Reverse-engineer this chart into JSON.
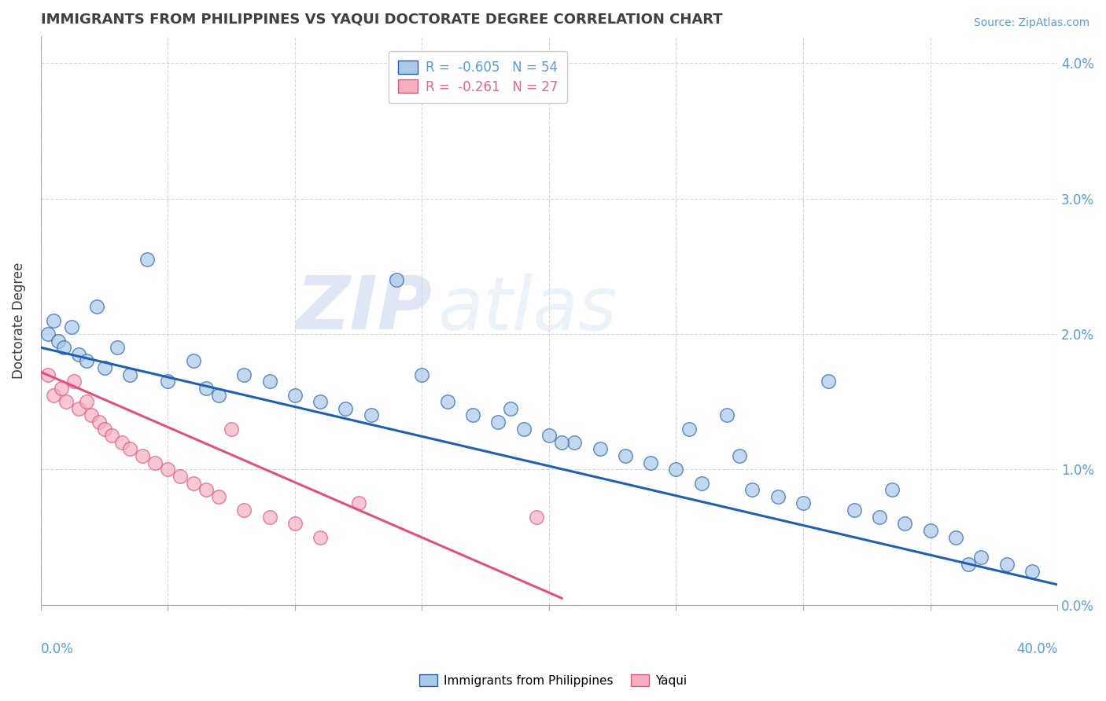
{
  "title": "IMMIGRANTS FROM PHILIPPINES VS YAQUI DOCTORATE DEGREE CORRELATION CHART",
  "source": "Source: ZipAtlas.com",
  "ylabel": "Doctorate Degree",
  "legend_entries": [
    {
      "label": "Immigrants from Philippines",
      "R": "-0.605",
      "N": "54",
      "color": "#5b9bd5",
      "fill": "#aec6e8"
    },
    {
      "label": "Yaqui",
      "R": "-0.261",
      "N": "27",
      "color": "#f06090",
      "fill": "#f4b8c8"
    }
  ],
  "watermark_zip": "ZIP",
  "watermark_atlas": "atlas",
  "blue_scatter_x": [
    0.3,
    0.5,
    0.7,
    0.9,
    1.2,
    1.5,
    1.8,
    2.2,
    2.5,
    3.0,
    3.5,
    4.2,
    5.0,
    6.0,
    6.5,
    7.0,
    8.0,
    9.0,
    10.0,
    11.0,
    12.0,
    13.0,
    14.0,
    15.0,
    16.0,
    17.0,
    18.0,
    19.0,
    20.0,
    21.0,
    22.0,
    23.0,
    24.0,
    25.0,
    26.0,
    27.0,
    28.0,
    29.0,
    30.0,
    31.0,
    32.0,
    33.0,
    34.0,
    35.0,
    36.0,
    37.0,
    38.0,
    39.0,
    18.5,
    20.5,
    25.5,
    27.5,
    33.5,
    36.5
  ],
  "blue_scatter_y": [
    2.0,
    2.1,
    1.95,
    1.9,
    2.05,
    1.85,
    1.8,
    2.2,
    1.75,
    1.9,
    1.7,
    2.55,
    1.65,
    1.8,
    1.6,
    1.55,
    1.7,
    1.65,
    1.55,
    1.5,
    1.45,
    1.4,
    2.4,
    1.7,
    1.5,
    1.4,
    1.35,
    1.3,
    1.25,
    1.2,
    1.15,
    1.1,
    1.05,
    1.0,
    0.9,
    1.4,
    0.85,
    0.8,
    0.75,
    1.65,
    0.7,
    0.65,
    0.6,
    0.55,
    0.5,
    0.35,
    0.3,
    0.25,
    1.45,
    1.2,
    1.3,
    1.1,
    0.85,
    0.3
  ],
  "pink_scatter_x": [
    0.3,
    0.5,
    0.8,
    1.0,
    1.3,
    1.5,
    1.8,
    2.0,
    2.3,
    2.5,
    2.8,
    3.2,
    3.5,
    4.0,
    4.5,
    5.0,
    5.5,
    6.0,
    6.5,
    7.0,
    8.0,
    9.0,
    10.0,
    11.0,
    12.5,
    19.5,
    7.5
  ],
  "pink_scatter_y": [
    1.7,
    1.55,
    1.6,
    1.5,
    1.65,
    1.45,
    1.5,
    1.4,
    1.35,
    1.3,
    1.25,
    1.2,
    1.15,
    1.1,
    1.05,
    1.0,
    0.95,
    0.9,
    0.85,
    0.8,
    0.7,
    0.65,
    0.6,
    0.5,
    0.75,
    0.65,
    1.3
  ],
  "blue_line_x": [
    0.0,
    40.0
  ],
  "blue_line_y": [
    1.9,
    0.15
  ],
  "pink_line_x": [
    0.0,
    20.5
  ],
  "pink_line_y": [
    1.72,
    0.05
  ],
  "xlim": [
    0.0,
    40.0
  ],
  "ylim": [
    0.0,
    4.2
  ],
  "bg_color": "#ffffff",
  "grid_color": "#cccccc",
  "title_color": "#404040",
  "axis_label_color": "#5b9bd5",
  "blue_color": "#2060b0",
  "pink_color": "#e05080",
  "blue_fill": "#aac8e8",
  "pink_fill": "#f4b0c0"
}
